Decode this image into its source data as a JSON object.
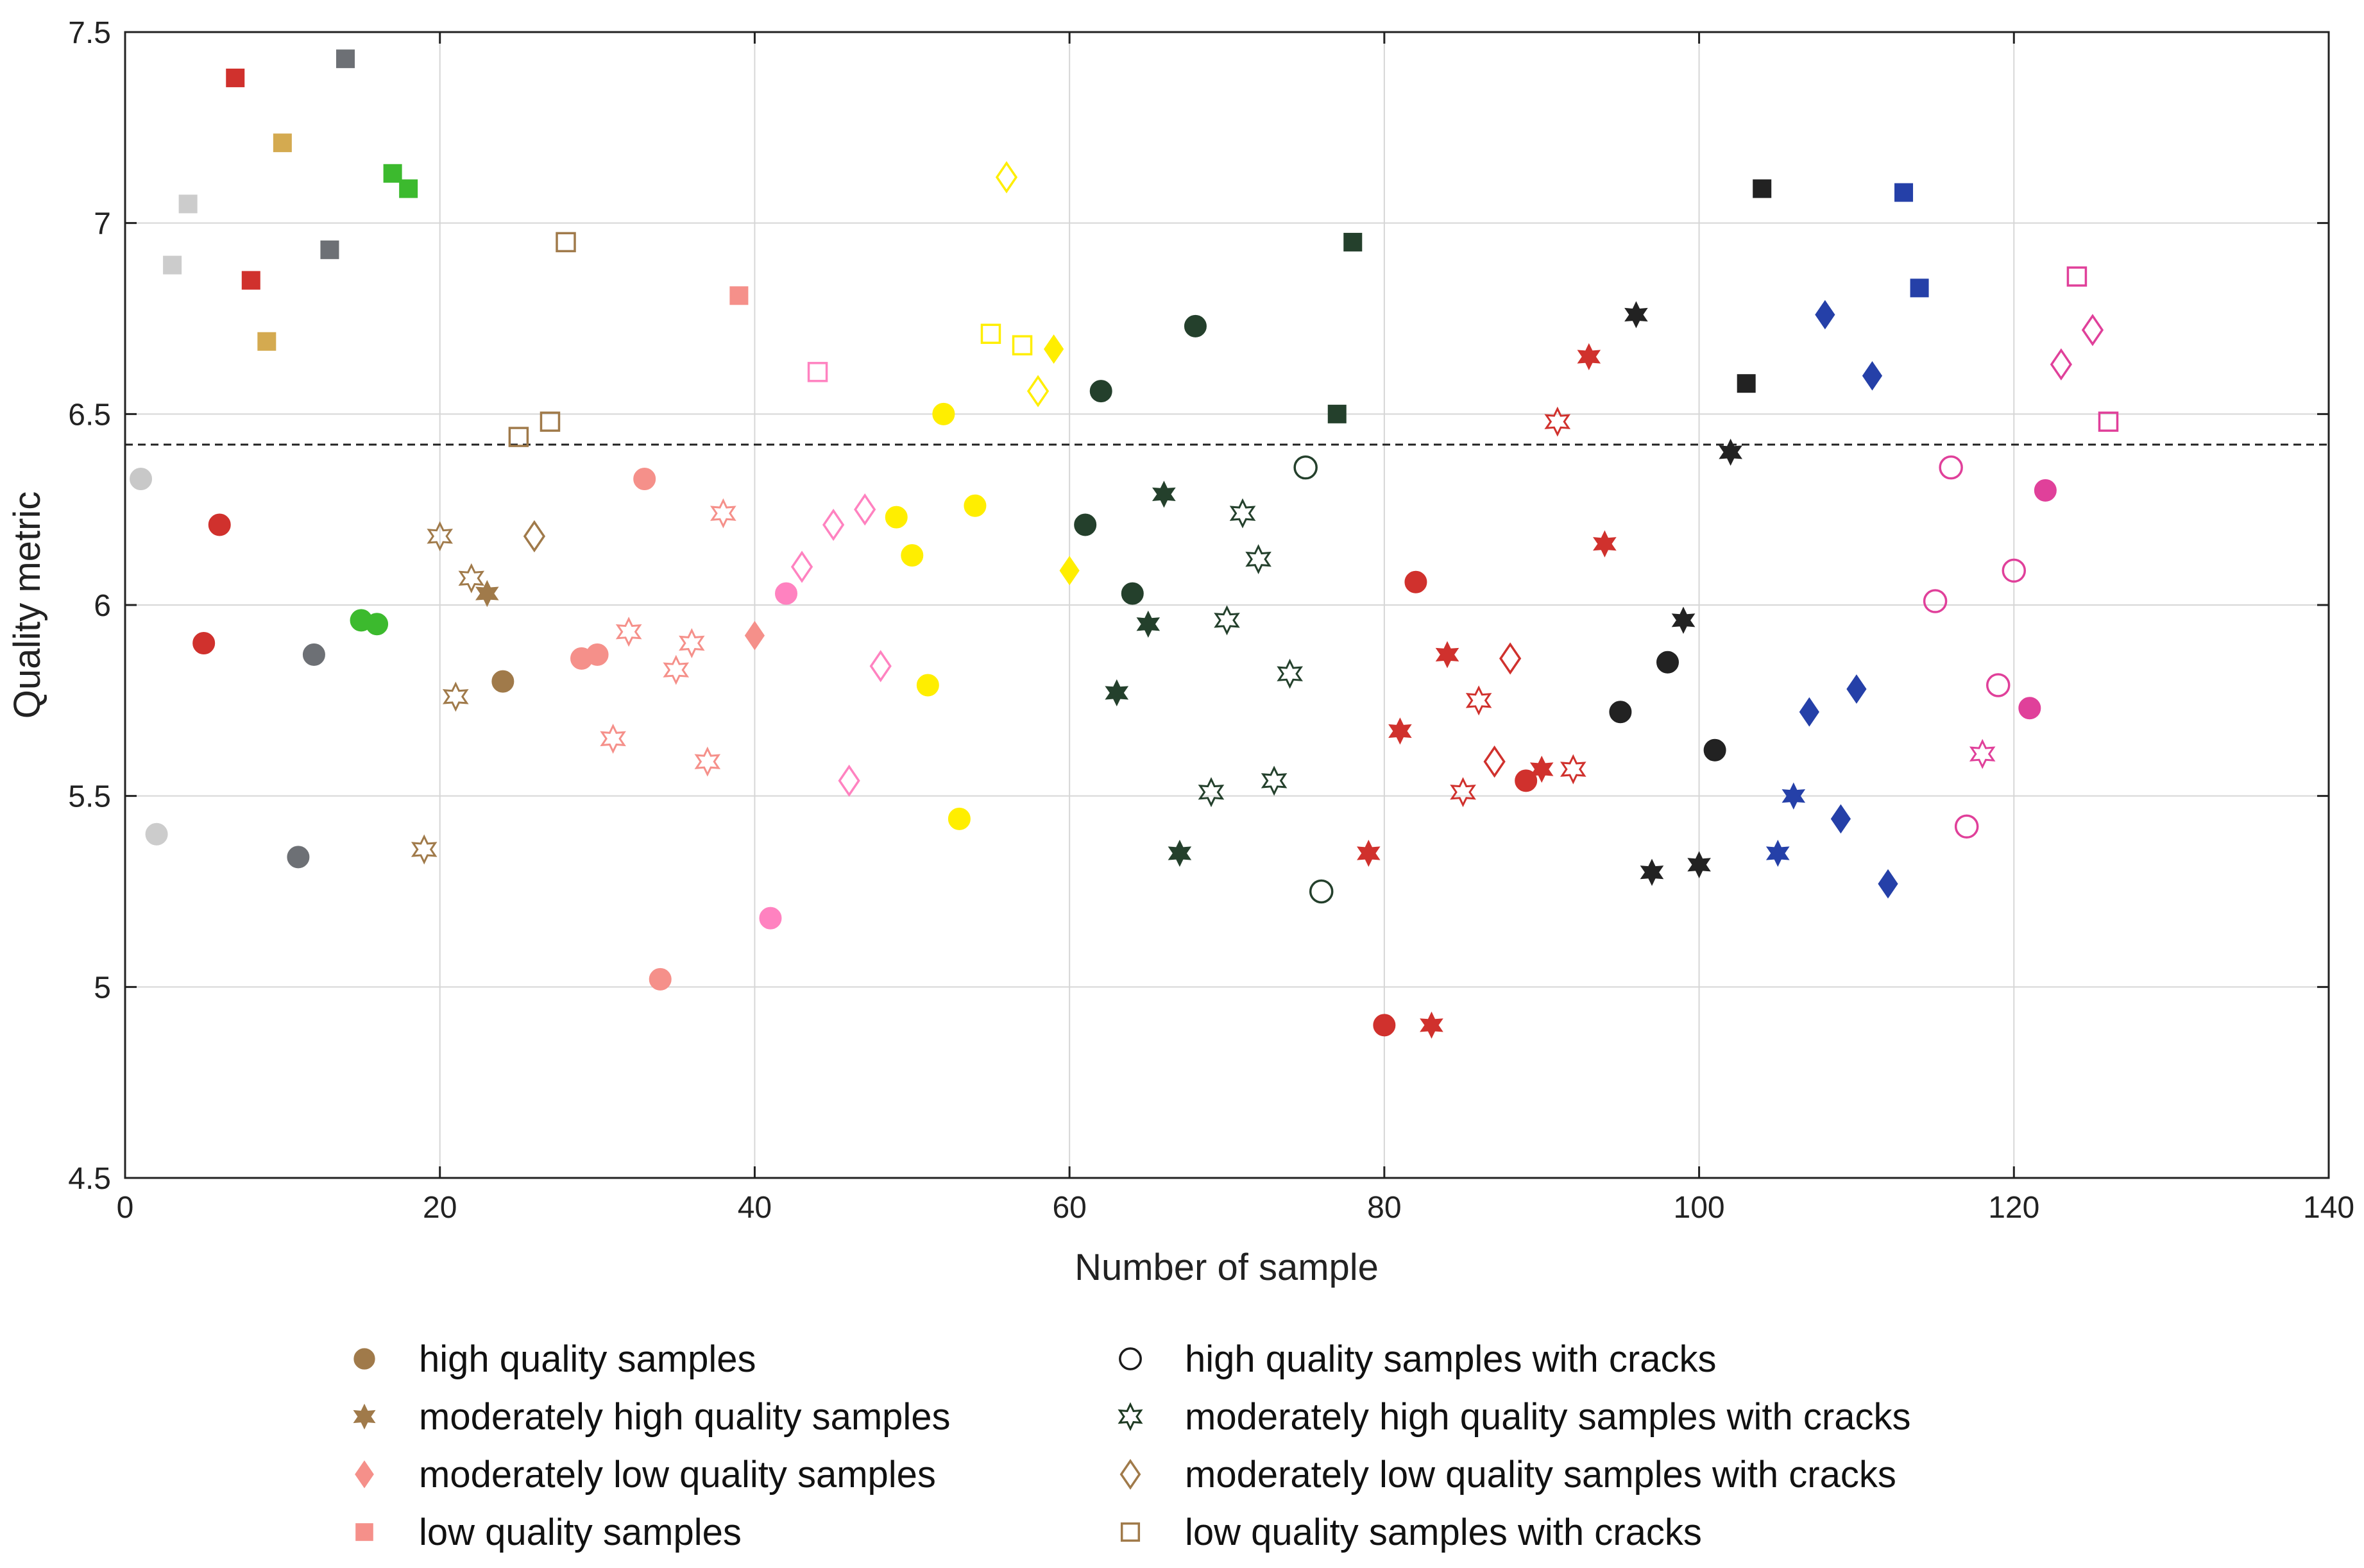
{
  "chart_data": {
    "type": "scatter",
    "title": "",
    "xlabel": "Number of sample",
    "ylabel": "Quality metric",
    "xlim": [
      0,
      140
    ],
    "ylim": [
      4.5,
      7.5
    ],
    "xticks": [
      0,
      20,
      40,
      60,
      80,
      100,
      120,
      140
    ],
    "yticks": [
      4.5,
      5,
      5.5,
      6,
      6.5,
      7,
      7.5
    ],
    "grid": true,
    "threshold": 6.42,
    "legend": [
      {
        "label": "high quality samples",
        "marker": "circle",
        "filled": true,
        "color": "#a07a4a"
      },
      {
        "label": "moderately high quality samples",
        "marker": "hexagram",
        "filled": true,
        "color": "#a07a4a"
      },
      {
        "label": "moderately low quality samples",
        "marker": "diamond",
        "filled": true,
        "color": "#f5908a"
      },
      {
        "label": "low quality samples",
        "marker": "square",
        "filled": true,
        "color": "#f5908a"
      },
      {
        "label": "high quality samples with cracks",
        "marker": "circle",
        "filled": false,
        "color": "#1a1a1a"
      },
      {
        "label": "moderately high quality samples with cracks",
        "marker": "hexagram",
        "filled": false,
        "color": "#1e3a22"
      },
      {
        "label": "moderately low quality samples with cracks",
        "marker": "diamond",
        "filled": false,
        "color": "#a07a4a"
      },
      {
        "label": "low quality samples with cracks",
        "marker": "square",
        "filled": false,
        "color": "#a07a4a"
      }
    ],
    "points": [
      {
        "x": 1,
        "y": 6.33,
        "m": "circle",
        "f": false,
        "c": "#c8c8c8",
        "ff": true
      },
      {
        "x": 2,
        "y": 5.4,
        "m": "circle",
        "f": true,
        "c": "#cccccc"
      },
      {
        "x": 3,
        "y": 6.89,
        "m": "square",
        "f": true,
        "c": "#cccccc"
      },
      {
        "x": 4,
        "y": 7.05,
        "m": "square",
        "f": true,
        "c": "#cccccc"
      },
      {
        "x": 5,
        "y": 5.9,
        "m": "circle",
        "f": true,
        "c": "#d0312d"
      },
      {
        "x": 6,
        "y": 6.21,
        "m": "circle",
        "f": true,
        "c": "#d0312d"
      },
      {
        "x": 7,
        "y": 7.38,
        "m": "square",
        "f": true,
        "c": "#d0312d"
      },
      {
        "x": 8,
        "y": 6.85,
        "m": "square",
        "f": true,
        "c": "#d0312d"
      },
      {
        "x": 9,
        "y": 6.69,
        "m": "square",
        "f": true,
        "c": "#d4aa50"
      },
      {
        "x": 10,
        "y": 7.21,
        "m": "square",
        "f": true,
        "c": "#d4aa50"
      },
      {
        "x": 11,
        "y": 5.34,
        "m": "circle",
        "f": true,
        "c": "#6d7075"
      },
      {
        "x": 12,
        "y": 5.87,
        "m": "circle",
        "f": true,
        "c": "#6d7075"
      },
      {
        "x": 13,
        "y": 6.93,
        "m": "square",
        "f": true,
        "c": "#6d7075"
      },
      {
        "x": 14,
        "y": 7.43,
        "m": "square",
        "f": true,
        "c": "#6d7075"
      },
      {
        "x": 15,
        "y": 5.96,
        "m": "circle",
        "f": true,
        "c": "#3cba2e"
      },
      {
        "x": 16,
        "y": 5.95,
        "m": "circle",
        "f": true,
        "c": "#3cba2e"
      },
      {
        "x": 17,
        "y": 7.13,
        "m": "square",
        "f": true,
        "c": "#3cba2e"
      },
      {
        "x": 18,
        "y": 7.09,
        "m": "square",
        "f": true,
        "c": "#3cba2e"
      },
      {
        "x": 19,
        "y": 5.36,
        "m": "hexagram",
        "f": false,
        "c": "#a07a4a"
      },
      {
        "x": 20,
        "y": 6.18,
        "m": "hexagram",
        "f": false,
        "c": "#a07a4a"
      },
      {
        "x": 21,
        "y": 5.76,
        "m": "hexagram",
        "f": false,
        "c": "#a07a4a"
      },
      {
        "x": 22,
        "y": 6.07,
        "m": "hexagram",
        "f": false,
        "c": "#a07a4a"
      },
      {
        "x": 23,
        "y": 6.03,
        "m": "hexagram",
        "f": true,
        "c": "#a07a4a"
      },
      {
        "x": 24,
        "y": 5.8,
        "m": "circle",
        "f": true,
        "c": "#a07a4a"
      },
      {
        "x": 25,
        "y": 6.44,
        "m": "square",
        "f": false,
        "c": "#a07a4a"
      },
      {
        "x": 26,
        "y": 6.18,
        "m": "diamond",
        "f": false,
        "c": "#a07a4a"
      },
      {
        "x": 27,
        "y": 6.48,
        "m": "square",
        "f": false,
        "c": "#a07a4a"
      },
      {
        "x": 28,
        "y": 6.95,
        "m": "square",
        "f": false,
        "c": "#a07a4a"
      },
      {
        "x": 29,
        "y": 5.86,
        "m": "circle",
        "f": true,
        "c": "#f5908a"
      },
      {
        "x": 30,
        "y": 5.87,
        "m": "circle",
        "f": true,
        "c": "#f5908a"
      },
      {
        "x": 31,
        "y": 5.65,
        "m": "hexagram",
        "f": false,
        "c": "#f5908a"
      },
      {
        "x": 32,
        "y": 5.93,
        "m": "hexagram",
        "f": false,
        "c": "#f5908a"
      },
      {
        "x": 33,
        "y": 6.33,
        "m": "circle",
        "f": true,
        "c": "#f5908a"
      },
      {
        "x": 34,
        "y": 5.02,
        "m": "circle",
        "f": true,
        "c": "#f5908a"
      },
      {
        "x": 35,
        "y": 5.83,
        "m": "hexagram",
        "f": false,
        "c": "#f5908a"
      },
      {
        "x": 36,
        "y": 5.9,
        "m": "hexagram",
        "f": false,
        "c": "#f5908a"
      },
      {
        "x": 37,
        "y": 5.59,
        "m": "hexagram",
        "f": false,
        "c": "#f5908a"
      },
      {
        "x": 38,
        "y": 6.24,
        "m": "hexagram",
        "f": false,
        "c": "#f5908a"
      },
      {
        "x": 39,
        "y": 6.81,
        "m": "square",
        "f": true,
        "c": "#f5908a"
      },
      {
        "x": 40,
        "y": 5.92,
        "m": "diamond",
        "f": true,
        "c": "#f5908a"
      },
      {
        "x": 41,
        "y": 5.18,
        "m": "circle",
        "f": true,
        "c": "#ff82c0"
      },
      {
        "x": 42,
        "y": 6.03,
        "m": "circle",
        "f": true,
        "c": "#ff82c0"
      },
      {
        "x": 43,
        "y": 6.1,
        "m": "diamond",
        "f": false,
        "c": "#ff82c0"
      },
      {
        "x": 44,
        "y": 6.61,
        "m": "square",
        "f": false,
        "c": "#ff82c0"
      },
      {
        "x": 45,
        "y": 6.21,
        "m": "diamond",
        "f": false,
        "c": "#ff82c0"
      },
      {
        "x": 46,
        "y": 5.54,
        "m": "diamond",
        "f": false,
        "c": "#ff82c0"
      },
      {
        "x": 47,
        "y": 6.25,
        "m": "diamond",
        "f": false,
        "c": "#ff82c0"
      },
      {
        "x": 48,
        "y": 5.84,
        "m": "diamond",
        "f": false,
        "c": "#ff82c0"
      },
      {
        "x": 49,
        "y": 6.23,
        "m": "circle",
        "f": true,
        "c": "#ffee00"
      },
      {
        "x": 50,
        "y": 6.13,
        "m": "circle",
        "f": true,
        "c": "#ffee00"
      },
      {
        "x": 51,
        "y": 5.79,
        "m": "circle",
        "f": true,
        "c": "#ffee00"
      },
      {
        "x": 52,
        "y": 6.5,
        "m": "circle",
        "f": true,
        "c": "#ffee00"
      },
      {
        "x": 53,
        "y": 5.44,
        "m": "circle",
        "f": true,
        "c": "#ffee00"
      },
      {
        "x": 54,
        "y": 6.26,
        "m": "circle",
        "f": true,
        "c": "#ffee00"
      },
      {
        "x": 55,
        "y": 6.71,
        "m": "square",
        "f": false,
        "c": "#ffee00"
      },
      {
        "x": 56,
        "y": 7.12,
        "m": "diamond",
        "f": false,
        "c": "#ffee00"
      },
      {
        "x": 57,
        "y": 6.68,
        "m": "square",
        "f": false,
        "c": "#ffee00"
      },
      {
        "x": 58,
        "y": 6.56,
        "m": "diamond",
        "f": false,
        "c": "#ffee00"
      },
      {
        "x": 59,
        "y": 6.67,
        "m": "diamond",
        "f": true,
        "c": "#ffee00"
      },
      {
        "x": 60,
        "y": 6.09,
        "m": "diamond",
        "f": true,
        "c": "#ffee00"
      },
      {
        "x": 61,
        "y": 6.21,
        "m": "circle",
        "f": true,
        "c": "#24402c"
      },
      {
        "x": 62,
        "y": 6.56,
        "m": "circle",
        "f": true,
        "c": "#24402c"
      },
      {
        "x": 63,
        "y": 5.77,
        "m": "hexagram",
        "f": true,
        "c": "#24402c"
      },
      {
        "x": 64,
        "y": 6.03,
        "m": "circle",
        "f": true,
        "c": "#24402c"
      },
      {
        "x": 65,
        "y": 5.95,
        "m": "hexagram",
        "f": true,
        "c": "#24402c"
      },
      {
        "x": 66,
        "y": 6.29,
        "m": "hexagram",
        "f": true,
        "c": "#24402c"
      },
      {
        "x": 67,
        "y": 5.35,
        "m": "hexagram",
        "f": true,
        "c": "#24402c"
      },
      {
        "x": 68,
        "y": 6.73,
        "m": "circle",
        "f": true,
        "c": "#24402c"
      },
      {
        "x": 69,
        "y": 5.51,
        "m": "hexagram",
        "f": false,
        "c": "#24402c"
      },
      {
        "x": 70,
        "y": 5.96,
        "m": "hexagram",
        "f": false,
        "c": "#24402c"
      },
      {
        "x": 71,
        "y": 6.24,
        "m": "hexagram",
        "f": false,
        "c": "#24402c"
      },
      {
        "x": 72,
        "y": 6.12,
        "m": "hexagram",
        "f": false,
        "c": "#24402c"
      },
      {
        "x": 73,
        "y": 5.54,
        "m": "hexagram",
        "f": false,
        "c": "#24402c"
      },
      {
        "x": 74,
        "y": 5.82,
        "m": "hexagram",
        "f": false,
        "c": "#24402c"
      },
      {
        "x": 75,
        "y": 6.36,
        "m": "circle",
        "f": false,
        "c": "#24402c"
      },
      {
        "x": 76,
        "y": 5.25,
        "m": "circle",
        "f": false,
        "c": "#24402c"
      },
      {
        "x": 77,
        "y": 6.5,
        "m": "square",
        "f": true,
        "c": "#24402c"
      },
      {
        "x": 78,
        "y": 6.95,
        "m": "square",
        "f": true,
        "c": "#24402c"
      },
      {
        "x": 79,
        "y": 5.35,
        "m": "hexagram",
        "f": true,
        "c": "#d0312d"
      },
      {
        "x": 80,
        "y": 4.9,
        "m": "circle",
        "f": true,
        "c": "#d0312d"
      },
      {
        "x": 81,
        "y": 5.67,
        "m": "hexagram",
        "f": true,
        "c": "#d0312d"
      },
      {
        "x": 82,
        "y": 6.06,
        "m": "circle",
        "f": true,
        "c": "#d0312d"
      },
      {
        "x": 83,
        "y": 4.9,
        "m": "hexagram",
        "f": true,
        "c": "#d0312d"
      },
      {
        "x": 84,
        "y": 5.87,
        "m": "hexagram",
        "f": true,
        "c": "#d0312d"
      },
      {
        "x": 85,
        "y": 5.51,
        "m": "hexagram",
        "f": false,
        "c": "#d0312d"
      },
      {
        "x": 86,
        "y": 5.75,
        "m": "hexagram",
        "f": false,
        "c": "#d0312d"
      },
      {
        "x": 87,
        "y": 5.59,
        "m": "diamond",
        "f": false,
        "c": "#d0312d"
      },
      {
        "x": 88,
        "y": 5.86,
        "m": "diamond",
        "f": false,
        "c": "#d0312d"
      },
      {
        "x": 89,
        "y": 5.54,
        "m": "circle",
        "f": true,
        "c": "#d0312d"
      },
      {
        "x": 90,
        "y": 5.57,
        "m": "hexagram",
        "f": true,
        "c": "#d0312d"
      },
      {
        "x": 91,
        "y": 6.48,
        "m": "hexagram",
        "f": false,
        "c": "#d0312d"
      },
      {
        "x": 92,
        "y": 5.57,
        "m": "hexagram",
        "f": false,
        "c": "#d0312d"
      },
      {
        "x": 93,
        "y": 6.65,
        "m": "hexagram",
        "f": true,
        "c": "#d0312d"
      },
      {
        "x": 94,
        "y": 6.16,
        "m": "hexagram",
        "f": true,
        "c": "#d0312d"
      },
      {
        "x": 95,
        "y": 5.72,
        "m": "circle",
        "f": true,
        "c": "#222222"
      },
      {
        "x": 96,
        "y": 6.76,
        "m": "hexagram",
        "f": true,
        "c": "#222222"
      },
      {
        "x": 97,
        "y": 5.3,
        "m": "hexagram",
        "f": true,
        "c": "#222222"
      },
      {
        "x": 98,
        "y": 5.85,
        "m": "circle",
        "f": true,
        "c": "#222222"
      },
      {
        "x": 99,
        "y": 5.96,
        "m": "hexagram",
        "f": true,
        "c": "#222222"
      },
      {
        "x": 100,
        "y": 5.32,
        "m": "hexagram",
        "f": true,
        "c": "#222222"
      },
      {
        "x": 101,
        "y": 5.62,
        "m": "circle",
        "f": true,
        "c": "#222222"
      },
      {
        "x": 102,
        "y": 6.4,
        "m": "hexagram",
        "f": true,
        "c": "#222222"
      },
      {
        "x": 103,
        "y": 6.58,
        "m": "square",
        "f": true,
        "c": "#222222"
      },
      {
        "x": 104,
        "y": 7.09,
        "m": "square",
        "f": true,
        "c": "#222222"
      },
      {
        "x": 105,
        "y": 5.35,
        "m": "hexagram",
        "f": true,
        "c": "#2540a8"
      },
      {
        "x": 106,
        "y": 5.5,
        "m": "hexagram",
        "f": true,
        "c": "#2540a8"
      },
      {
        "x": 107,
        "y": 5.72,
        "m": "diamond",
        "f": true,
        "c": "#2540a8"
      },
      {
        "x": 108,
        "y": 6.76,
        "m": "diamond",
        "f": true,
        "c": "#2540a8"
      },
      {
        "x": 109,
        "y": 5.44,
        "m": "diamond",
        "f": true,
        "c": "#2540a8"
      },
      {
        "x": 110,
        "y": 5.78,
        "m": "diamond",
        "f": true,
        "c": "#2540a8"
      },
      {
        "x": 111,
        "y": 6.6,
        "m": "diamond",
        "f": true,
        "c": "#2540a8"
      },
      {
        "x": 112,
        "y": 5.27,
        "m": "diamond",
        "f": true,
        "c": "#2540a8"
      },
      {
        "x": 113,
        "y": 7.08,
        "m": "square",
        "f": true,
        "c": "#2540a8"
      },
      {
        "x": 114,
        "y": 6.83,
        "m": "square",
        "f": true,
        "c": "#2540a8"
      },
      {
        "x": 115,
        "y": 6.01,
        "m": "circle",
        "f": false,
        "c": "#e0409a"
      },
      {
        "x": 116,
        "y": 6.36,
        "m": "circle",
        "f": false,
        "c": "#e0409a"
      },
      {
        "x": 117,
        "y": 5.42,
        "m": "circle",
        "f": false,
        "c": "#e0409a"
      },
      {
        "x": 118,
        "y": 5.61,
        "m": "hexagram",
        "f": false,
        "c": "#e0409a"
      },
      {
        "x": 119,
        "y": 5.79,
        "m": "circle",
        "f": false,
        "c": "#e0409a"
      },
      {
        "x": 120,
        "y": 6.09,
        "m": "circle",
        "f": false,
        "c": "#e0409a"
      },
      {
        "x": 121,
        "y": 5.73,
        "m": "circle",
        "f": true,
        "c": "#e0409a"
      },
      {
        "x": 122,
        "y": 6.3,
        "m": "circle",
        "f": true,
        "c": "#e0409a"
      },
      {
        "x": 123,
        "y": 6.63,
        "m": "diamond",
        "f": false,
        "c": "#e0409a"
      },
      {
        "x": 124,
        "y": 6.86,
        "m": "square",
        "f": false,
        "c": "#e0409a"
      },
      {
        "x": 125,
        "y": 6.72,
        "m": "diamond",
        "f": false,
        "c": "#e0409a"
      },
      {
        "x": 126,
        "y": 6.48,
        "m": "square",
        "f": false,
        "c": "#e0409a"
      }
    ]
  }
}
